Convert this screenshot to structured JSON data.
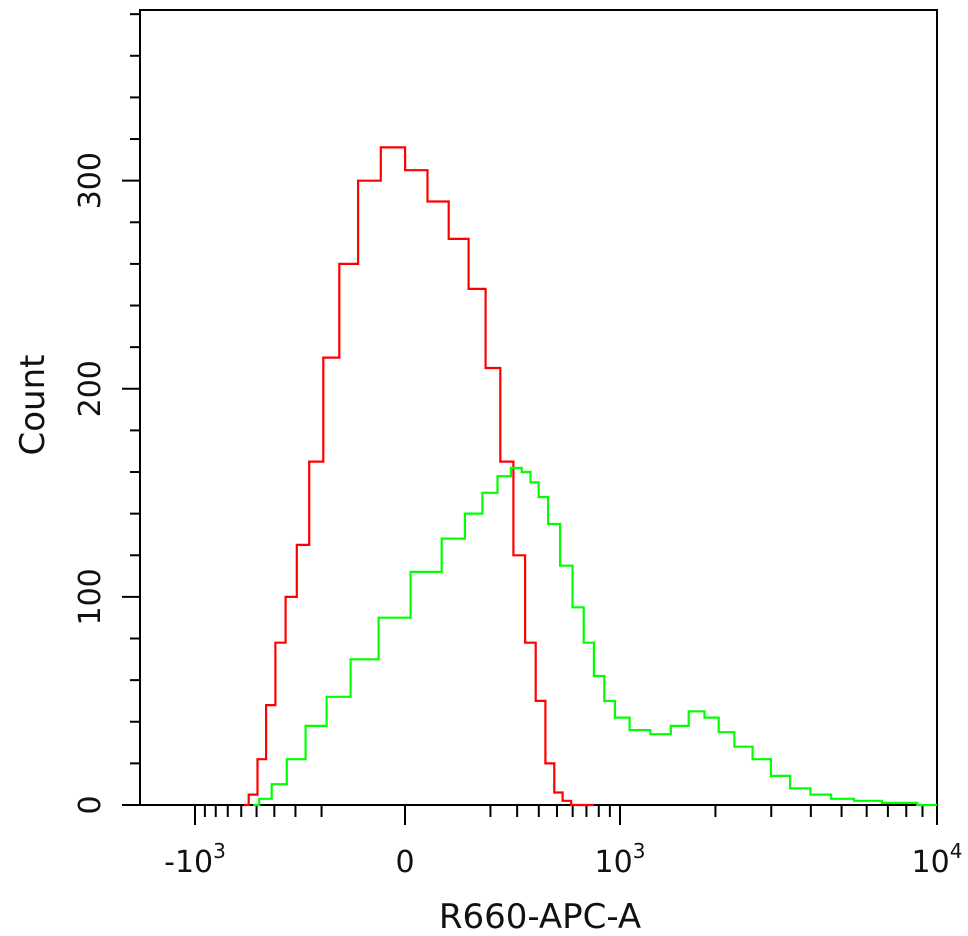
{
  "chart_data": {
    "type": "line",
    "xlabel": "R660-APC-A",
    "ylabel": "Count",
    "x_scale": "biexponential",
    "x_ticks": [
      {
        "value": -1000,
        "base": "-10",
        "exp": "3"
      },
      {
        "value": 0,
        "base": "0",
        "exp": ""
      },
      {
        "value": 1000,
        "base": "10",
        "exp": "3"
      },
      {
        "value": 10000,
        "base": "10",
        "exp": "4"
      }
    ],
    "y_ticks": [
      {
        "value": 0,
        "label": "0"
      },
      {
        "value": 100,
        "label": "100"
      },
      {
        "value": 200,
        "label": "200"
      },
      {
        "value": 300,
        "label": "300"
      }
    ],
    "ylim": [
      0,
      382
    ],
    "grid": false,
    "series": [
      {
        "color": "#ff0000",
        "x": [
          -580,
          -520,
          -470,
          -420,
          -370,
          -320,
          -270,
          -220,
          -170,
          -120,
          -70,
          -20,
          20,
          60,
          110,
          160,
          210,
          260,
          310,
          360,
          410,
          460,
          510,
          560,
          620,
          700,
          760
        ],
        "values": [
          0,
          5,
          22,
          48,
          78,
          100,
          125,
          165,
          215,
          260,
          300,
          316,
          305,
          290,
          272,
          248,
          210,
          165,
          120,
          78,
          50,
          20,
          6,
          2,
          0,
          0,
          0
        ]
      },
      {
        "color": "#00ff00",
        "x": [
          -520,
          -450,
          -380,
          -300,
          -220,
          -150,
          -80,
          -20,
          40,
          100,
          150,
          200,
          250,
          300,
          340,
          380,
          420,
          480,
          560,
          640,
          720,
          800,
          900,
          1000,
          1150,
          1350,
          1550,
          1750,
          1950,
          2150,
          2450,
          2800,
          3200,
          3700,
          4300,
          5000,
          6000,
          7500,
          10000
        ],
        "values": [
          0,
          3,
          10,
          22,
          38,
          52,
          70,
          90,
          112,
          128,
          140,
          150,
          158,
          162,
          160,
          155,
          148,
          135,
          115,
          95,
          78,
          62,
          50,
          42,
          36,
          34,
          38,
          45,
          42,
          35,
          28,
          22,
          14,
          8,
          5,
          3,
          2,
          1,
          0
        ]
      }
    ]
  }
}
